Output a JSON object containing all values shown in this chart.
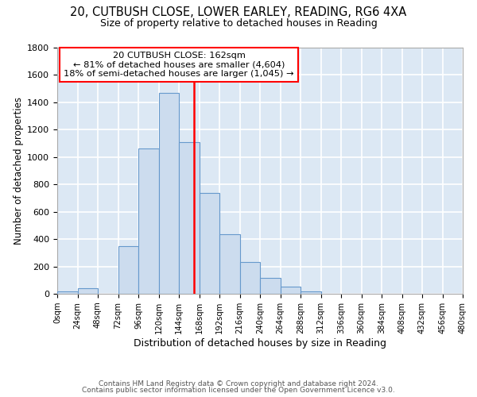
{
  "title": "20, CUTBUSH CLOSE, LOWER EARLEY, READING, RG6 4XA",
  "subtitle": "Size of property relative to detached houses in Reading",
  "xlabel": "Distribution of detached houses by size in Reading",
  "ylabel": "Number of detached properties",
  "bar_color": "#ccdcee",
  "bar_edge_color": "#6699cc",
  "background_color": "#dce8f4",
  "plot_bg_color": "#dce8f4",
  "grid_color": "#ffffff",
  "vline_x": 162,
  "vline_color": "red",
  "bin_width": 24,
  "bin_starts": [
    0,
    24,
    48,
    72,
    96,
    120,
    144,
    168,
    192,
    216,
    240,
    264,
    288,
    312,
    336,
    360,
    384,
    408,
    432,
    456
  ],
  "bar_heights": [
    15,
    40,
    0,
    350,
    1060,
    1470,
    1110,
    740,
    435,
    230,
    115,
    55,
    20,
    0,
    0,
    0,
    0,
    0,
    0,
    0
  ],
  "ylim": [
    0,
    1800
  ],
  "yticks": [
    0,
    200,
    400,
    600,
    800,
    1000,
    1200,
    1400,
    1600,
    1800
  ],
  "xtick_labels": [
    "0sqm",
    "24sqm",
    "48sqm",
    "72sqm",
    "96sqm",
    "120sqm",
    "144sqm",
    "168sqm",
    "192sqm",
    "216sqm",
    "240sqm",
    "264sqm",
    "288sqm",
    "312sqm",
    "336sqm",
    "360sqm",
    "384sqm",
    "408sqm",
    "432sqm",
    "456sqm",
    "480sqm"
  ],
  "annotation_title": "20 CUTBUSH CLOSE: 162sqm",
  "annotation_line1": "← 81% of detached houses are smaller (4,604)",
  "annotation_line2": "18% of semi-detached houses are larger (1,045) →",
  "annotation_box_color": "white",
  "annotation_box_edge": "red",
  "footer1": "Contains HM Land Registry data © Crown copyright and database right 2024.",
  "footer2": "Contains public sector information licensed under the Open Government Licence v3.0.",
  "fig_bg": "white"
}
